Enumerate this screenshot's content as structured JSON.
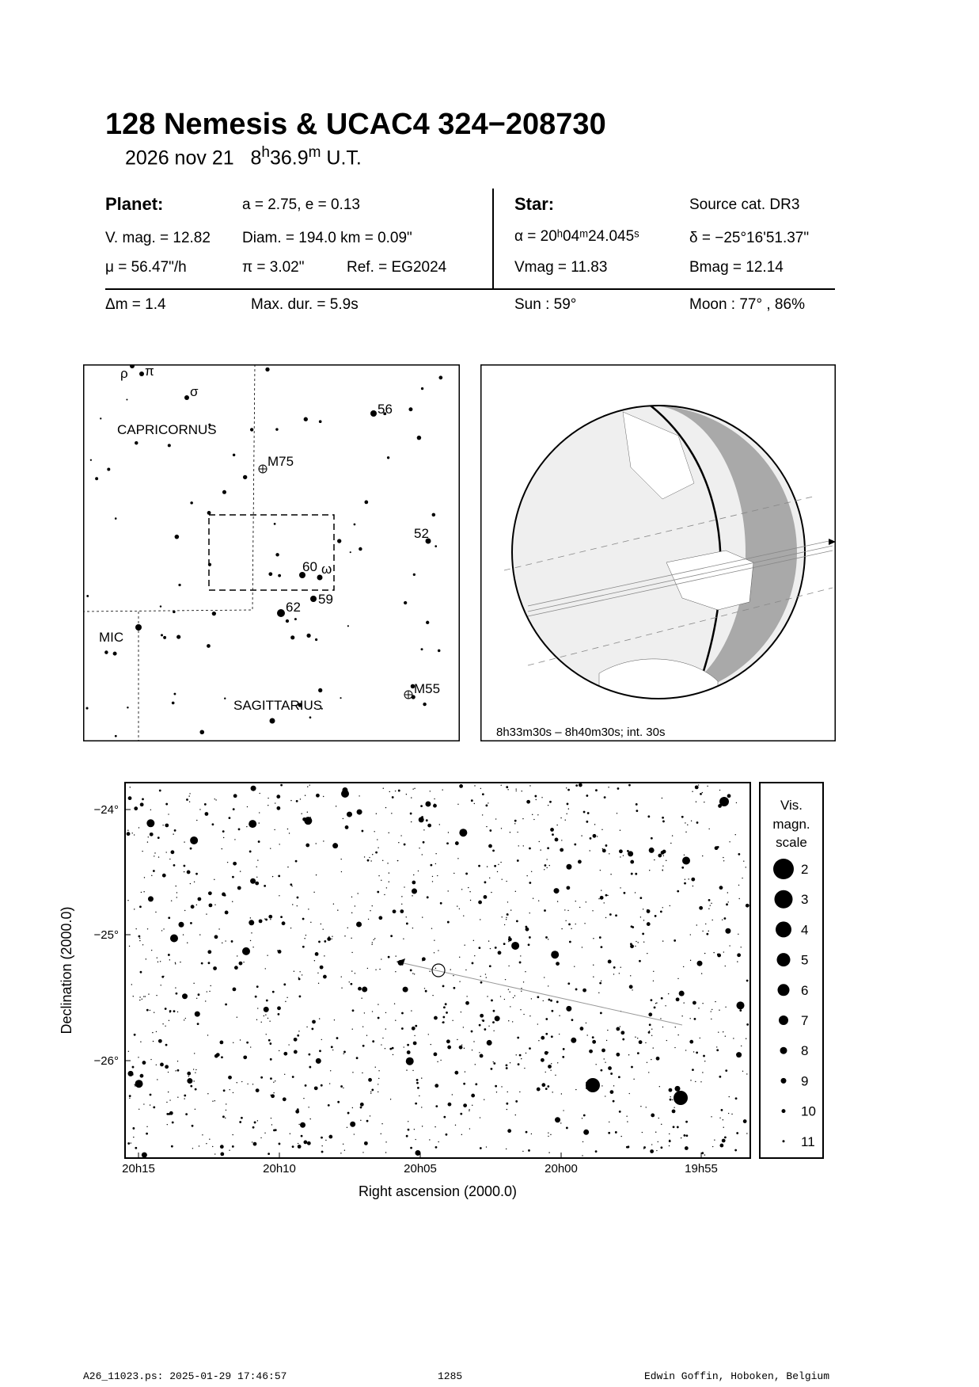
{
  "title": "128 Nemesis  &  UCAC4 324−208730",
  "date": "2026 nov 21",
  "time_h": "8",
  "time_m": "36.9",
  "time_suffix": "U.T.",
  "planet": {
    "heading": "Planet:",
    "orbit": "a = 2.75, e = 0.13",
    "vmag": "V. mag. = 12.82",
    "diam": "Diam. = 194.0 km = 0.09\"",
    "mu": "μ =  56.47\"/h",
    "pi": "π =  3.02\"",
    "ref": "Ref. = EG2024"
  },
  "star": {
    "heading": "Star:",
    "source": "Source cat.  DR3",
    "alpha": "α = 20ʰ04ᵐ24.045ˢ",
    "delta": "δ = −25°16'51.37\"",
    "vmag": "Vmag = 11.83",
    "bmag": "Bmag = 12.14"
  },
  "summary": {
    "dm": "Δm = 1.4",
    "maxdur": "Max. dur. = 5.9s",
    "sun": "Sun :  59°",
    "moon": "Moon :  77° , 86%"
  },
  "finder": {
    "labels": [
      "ρ",
      "π",
      "σ",
      "CAPRICORNUS",
      "56",
      "M75",
      "52",
      "60",
      "ω",
      "59",
      "62",
      "MIC",
      "M55",
      "SAGITTARIUS"
    ]
  },
  "globe": {
    "caption": "8h33m30s –  8h40m30s; int. 30s"
  },
  "chart": {
    "x_ticks": [
      "20h15",
      "20h10",
      "20h05",
      "20h00",
      "19h55"
    ],
    "y_ticks": [
      "−24°",
      "−25°",
      "−26°"
    ],
    "xlabel": "Right ascension (2000.0)",
    "ylabel": "Declination (2000.0)"
  },
  "legend": {
    "title": [
      "Vis.",
      "magn.",
      "scale"
    ],
    "mags": [
      "2",
      "3",
      "4",
      "5",
      "6",
      "7",
      "8",
      "9",
      "10",
      "11"
    ]
  },
  "footer": {
    "left": "A26_11023.ps: 2025-01-29 17:46:57",
    "center": "1285",
    "right": "Edwin Goffin, Hoboken, Belgium"
  }
}
